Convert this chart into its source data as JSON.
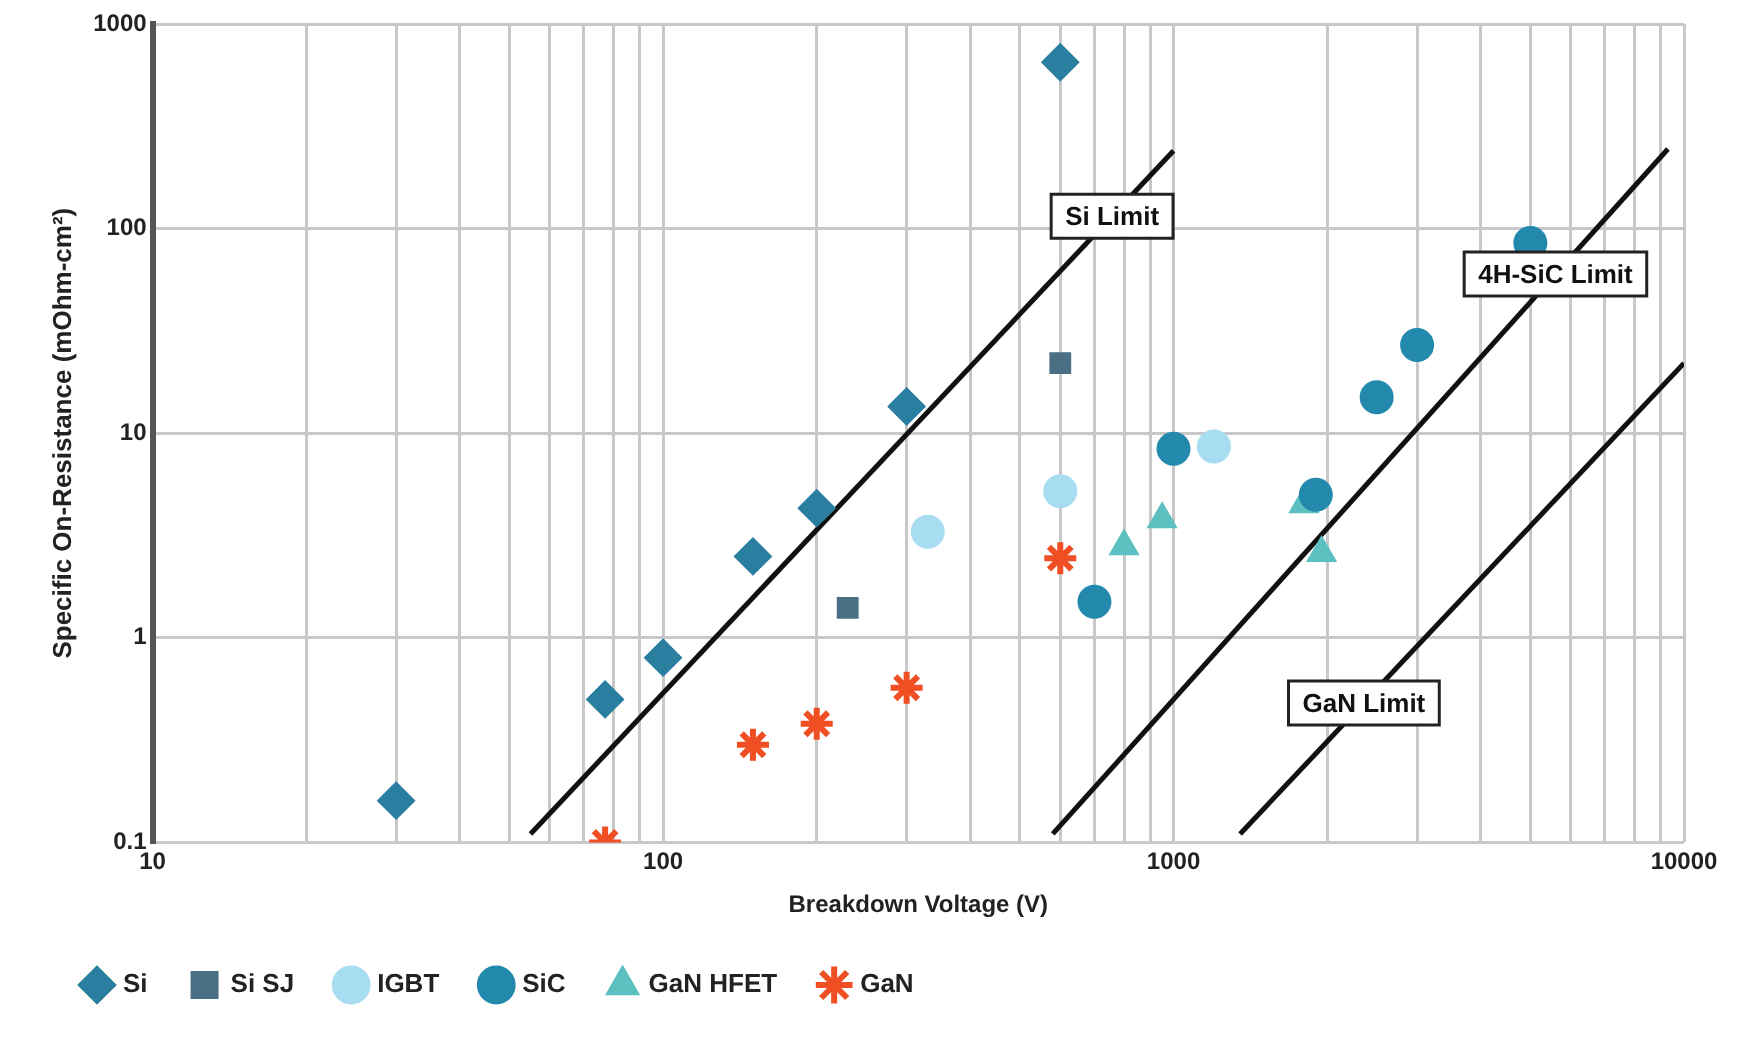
{
  "chart_data": {
    "type": "scatter",
    "xlabel": "Breakdown Voltage (V)",
    "ylabel": "Specific On-Resistance (mOhm-cm²)",
    "log": "xy",
    "grid": true,
    "legend": "bottom",
    "xlim": [
      10,
      10000
    ],
    "ylim": [
      0.1,
      1000
    ],
    "xticks": [
      10,
      {
        "value": 20,
        "label": null
      },
      {
        "value": 30,
        "label": null
      },
      {
        "value": 40,
        "label": null
      },
      {
        "value": 50,
        "label": null
      },
      {
        "value": 60,
        "label": null
      },
      {
        "value": 70,
        "label": null
      },
      {
        "value": 80,
        "label": null
      },
      {
        "value": 90,
        "label": null
      },
      100,
      {
        "value": 200,
        "label": null
      },
      {
        "value": 300,
        "label": null
      },
      {
        "value": 400,
        "label": null
      },
      {
        "value": 500,
        "label": null
      },
      {
        "value": 600,
        "label": null
      },
      {
        "value": 700,
        "label": null
      },
      {
        "value": 800,
        "label": null
      },
      {
        "value": 900,
        "label": null
      },
      1000,
      {
        "value": 2000,
        "label": null
      },
      {
        "value": 3000,
        "label": null
      },
      {
        "value": 4000,
        "label": null
      },
      {
        "value": 5000,
        "label": null
      },
      {
        "value": 6000,
        "label": null
      },
      {
        "value": 7000,
        "label": null
      },
      {
        "value": 8000,
        "label": null
      },
      {
        "value": 9000,
        "label": null
      },
      10000
    ],
    "yticks": [
      0.1,
      1,
      10,
      100,
      1000
    ],
    "series": [
      {
        "name": "Si",
        "color": "#2a7fa0",
        "marker": "diamond",
        "x": [
          30,
          77,
          100,
          150,
          200,
          300,
          600
        ],
        "values": [
          0.16,
          0.5,
          0.8,
          2.5,
          4.3,
          13.5,
          650
        ]
      },
      {
        "name": "Si SJ",
        "color": "#4a6f85",
        "marker": "square",
        "x": [
          230,
          600
        ],
        "values": [
          1.4,
          22
        ]
      },
      {
        "name": "IGBT",
        "color": "#a8dcf0",
        "marker": "circle",
        "x": [
          330,
          600,
          1200
        ],
        "values": [
          3.3,
          5.2,
          8.6
        ]
      },
      {
        "name": "SiC",
        "color": "#2389ad",
        "marker": "circle",
        "x": [
          700,
          1000,
          1900,
          2500,
          3000,
          5000
        ],
        "values": [
          1.5,
          8.4,
          5,
          15,
          27,
          85
        ]
      },
      {
        "name": "GaN HFET",
        "color": "#5cc0c0",
        "marker": "triangle",
        "x": [
          800,
          950,
          1800,
          1950
        ],
        "values": [
          2.8,
          3.8,
          4.5,
          2.6
        ]
      },
      {
        "name": "GaN",
        "color": "#f04e23",
        "marker": "cross",
        "x": [
          77,
          150,
          200,
          300,
          600
        ],
        "values": [
          0.1,
          0.3,
          0.38,
          0.57,
          2.45
        ]
      },
      {
        "type": "line",
        "color": "#111111",
        "marker": "none",
        "x": [
          55,
          1000
        ],
        "values": [
          0.11,
          240
        ]
      },
      {
        "type": "line",
        "color": "#111111",
        "marker": "none",
        "x": [
          580,
          9300
        ],
        "values": [
          0.11,
          245
        ]
      },
      {
        "type": "line",
        "color": "#111111",
        "marker": "none",
        "x": [
          1350,
          10000
        ],
        "values": [
          0.11,
          22
        ]
      }
    ],
    "annotations": [
      {
        "text": "Si Limit",
        "x": 758,
        "y": 115
      },
      {
        "text": "4H-SiC Limit",
        "x": 5600,
        "y": 60
      },
      {
        "text": "GaN Limit",
        "x": 2360,
        "y": 0.48
      }
    ]
  }
}
